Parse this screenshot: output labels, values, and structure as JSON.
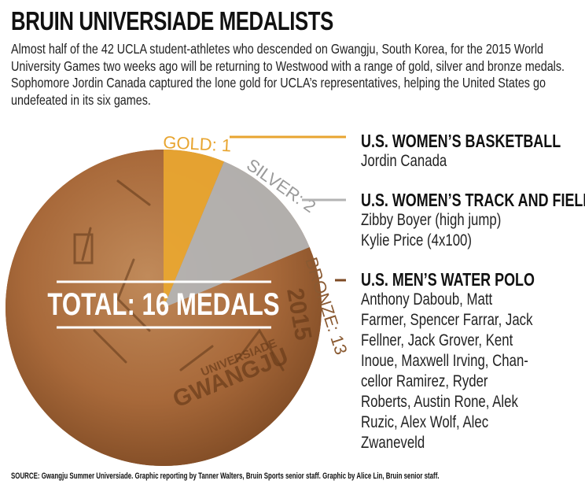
{
  "title": "BRUIN UNIVERSIADE MEDALISTS",
  "intro": "Almost half of the 42 UCLA student-athletes who descended on Gwangju, South Korea, for the 2015 World University Games two weeks ago will be returning to Westwood with a range of gold, silver and bronze medals. Sophomore Jordin Canada captured the lone gold for UCLA’s representatives, helping the United States go undefeated in its six games.",
  "total_label": "TOTAL: 16 MEDALS",
  "medal_inscription": {
    "event": "UNIVERSIADE",
    "city": "GWANGJU",
    "year": "2015"
  },
  "chart_data": {
    "type": "pie",
    "categories": [
      "GOLD",
      "SILVER",
      "BRONZE"
    ],
    "values": [
      1,
      2,
      13
    ],
    "slice_labels": [
      "GOLD: 1",
      "SILVER: 2",
      "BRONZE: 13"
    ],
    "total": 16,
    "colors": {
      "gold": "#e8a530",
      "silver": "#b3b3b3",
      "bronze": "#a8693a"
    }
  },
  "groups": [
    {
      "medal": "gold",
      "title": "U.S. WOMEN’S BASKETBALL",
      "athletes": [
        "Jordin Canada"
      ]
    },
    {
      "medal": "silver",
      "title": "U.S. WOMEN’S TRACK AND FIELD",
      "athletes": [
        "Zibby Boyer (high jump)",
        "Kylie Price (4x100)"
      ]
    },
    {
      "medal": "bronze",
      "title": "U.S. MEN’S WATER POLO",
      "athletes": [
        "Anthony Daboub, Matt",
        "Farmer, Spencer Farrar, Jack",
        "Fellner, Jack Grover, Kent",
        "Inoue, Maxwell Irving, Chan-",
        "cellor Ramirez, Ryder",
        "Roberts, Austin Rone, Alek",
        "Ruzic, Alex Wolf, Alec",
        "Zwaneveld"
      ]
    }
  ],
  "source": "SOURCE: Gwangju Summer Universiade. Graphic reporting by Tanner Walters, Bruin Sports senior staff. Graphic by Alice Lin, Bruin senior staff."
}
